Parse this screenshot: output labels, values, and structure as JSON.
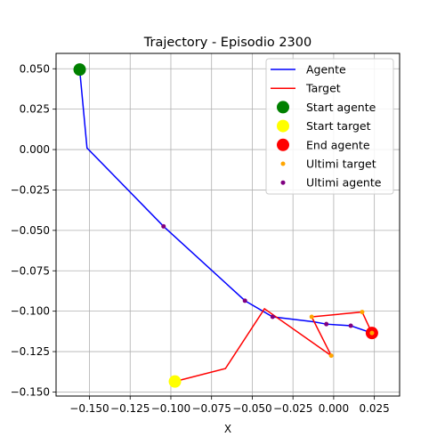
{
  "chart_data": {
    "type": "line",
    "title": "Trajectory - Episodio 2300",
    "xlabel": "X",
    "ylabel": "",
    "xlim": [
      -0.1705,
      0.0405
    ],
    "ylim": [
      -0.1525,
      0.0595
    ],
    "grid": true,
    "legend_position": "top-right",
    "xticks": [
      -0.15,
      -0.125,
      -0.1,
      -0.075,
      -0.05,
      -0.025,
      0.0,
      0.025
    ],
    "xtick_labels": [
      "−0.150",
      "−0.125",
      "−0.100",
      "−0.075",
      "−0.050",
      "−0.025",
      "0.000",
      "0.025"
    ],
    "yticks": [
      0.05,
      0.025,
      0.0,
      -0.025,
      -0.05,
      -0.075,
      -0.1,
      -0.125,
      -0.15
    ],
    "ytick_labels": [
      "0.050",
      "0.025",
      "0.000",
      "−0.025",
      "−0.050",
      "−0.075",
      "−0.100",
      "−0.125",
      "−0.150"
    ],
    "series": [
      {
        "name": "Agente",
        "kind": "line",
        "color": "#0000ff",
        "x": [
          -0.156,
          -0.1515,
          -0.1045,
          -0.0545,
          -0.0375,
          -0.0125,
          -0.0045,
          0.0105,
          0.0235
        ],
        "y": [
          0.0495,
          0.001,
          -0.0475,
          -0.0935,
          -0.1035,
          -0.1065,
          -0.108,
          -0.109,
          -0.1135
        ]
      },
      {
        "name": "Target",
        "kind": "line",
        "color": "#ff0000",
        "x": [
          -0.0975,
          -0.0665,
          -0.0425,
          -0.0015,
          -0.0135,
          0.0175,
          0.0235
        ],
        "y": [
          -0.1435,
          -0.1355,
          -0.0985,
          -0.1275,
          -0.1035,
          -0.1005,
          -0.1135
        ]
      },
      {
        "name": "Start agente",
        "kind": "marker",
        "color": "#008000",
        "x": [
          -0.156
        ],
        "y": [
          0.0495
        ]
      },
      {
        "name": "Start target",
        "kind": "marker",
        "color": "#ffff00",
        "x": [
          -0.0975
        ],
        "y": [
          -0.1435
        ]
      },
      {
        "name": "End agente",
        "kind": "marker",
        "color": "#ff0000",
        "x": [
          0.0235
        ],
        "y": [
          -0.1135
        ]
      },
      {
        "name": "Ultimi target",
        "kind": "dots",
        "color": "#ffa500",
        "x": [
          -0.0015,
          -0.0135,
          0.0175,
          0.0235
        ],
        "y": [
          -0.1275,
          -0.1035,
          -0.1005,
          -0.1135
        ]
      },
      {
        "name": "Ultimi agente",
        "kind": "dots",
        "color": "#800080",
        "x": [
          -0.1045,
          -0.0545,
          -0.0375,
          -0.0045,
          0.0105
        ],
        "y": [
          -0.0475,
          -0.0935,
          -0.1035,
          -0.108,
          -0.109
        ]
      }
    ]
  }
}
